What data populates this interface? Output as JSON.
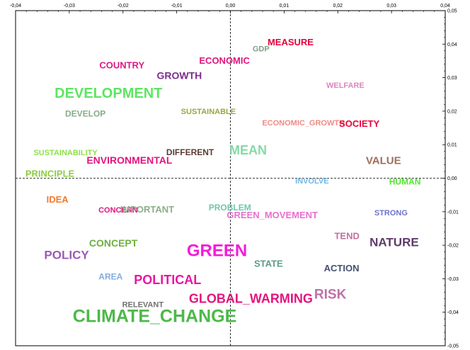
{
  "chart_data": {
    "type": "scatter",
    "title": "",
    "xlabel": "",
    "ylabel": "",
    "xlim": [
      -0.04,
      0.04
    ],
    "ylim": [
      -0.05,
      0.05
    ],
    "x_ticks": [
      "-0,04",
      "-0,03",
      "-0,02",
      "-0,01",
      "0,00",
      "0,01",
      "0,02",
      "0,03",
      "0,04"
    ],
    "y_ticks": [
      "0,05",
      "0,04",
      "0,03",
      "0,02",
      "0,01",
      "0,00",
      "-0,01",
      "-0,02",
      "-0,03",
      "-0,04",
      "-0,05"
    ],
    "grid": false,
    "origin_lines": "dashed",
    "points": [
      {
        "label": "MEASURE",
        "x": 0.0112,
        "y": 0.0404,
        "size": 13,
        "color": "#E8003A"
      },
      {
        "label": "GDP",
        "x": 0.0057,
        "y": 0.0385,
        "size": 11,
        "color": "#7F9F86"
      },
      {
        "label": "ECONOMIC",
        "x": -0.0011,
        "y": 0.0349,
        "size": 13,
        "color": "#E3147E"
      },
      {
        "label": "COUNTRY",
        "x": -0.0202,
        "y": 0.0335,
        "size": 13,
        "color": "#DD1A86"
      },
      {
        "label": "GROWTH",
        "x": -0.0095,
        "y": 0.0304,
        "size": 14,
        "color": "#7E2E8E"
      },
      {
        "label": "WELFARE",
        "x": 0.0214,
        "y": 0.0276,
        "size": 11,
        "color": "#DE86BE"
      },
      {
        "label": "DEVELOPMENT",
        "x": -0.0227,
        "y": 0.0251,
        "size": 20,
        "color": "#5EE561"
      },
      {
        "label": "DEVELOP",
        "x": -0.027,
        "y": 0.0191,
        "size": 12,
        "color": "#86AD86"
      },
      {
        "label": "SUSTAINABLE",
        "x": -0.0041,
        "y": 0.0198,
        "size": 11,
        "color": "#9DA440"
      },
      {
        "label": "ECONOMIC_GROWTH",
        "x": 0.0136,
        "y": 0.0164,
        "size": 11,
        "color": "#F08A86"
      },
      {
        "label": "SOCIETY",
        "x": 0.024,
        "y": 0.0161,
        "size": 13,
        "color": "#E8003A"
      },
      {
        "label": "SUSTAINABILITY",
        "x": -0.0307,
        "y": 0.0075,
        "size": 11,
        "color": "#8DE04A"
      },
      {
        "label": "DIFFERENT",
        "x": -0.0075,
        "y": 0.0075,
        "size": 12,
        "color": "#5A3A32"
      },
      {
        "label": "MEAN",
        "x": 0.0033,
        "y": 0.0081,
        "size": 18,
        "color": "#86D9A6"
      },
      {
        "label": "ENVIRONMENTAL",
        "x": -0.0188,
        "y": 0.0051,
        "size": 14,
        "color": "#E3147E"
      },
      {
        "label": "VALUE",
        "x": 0.0285,
        "y": 0.0051,
        "size": 15,
        "color": "#A06E5A"
      },
      {
        "label": "PRINCIPLE",
        "x": -0.0336,
        "y": 0.0011,
        "size": 13,
        "color": "#8DCC40"
      },
      {
        "label": "INVOLVE",
        "x": 0.0152,
        "y": -0.001,
        "size": 11,
        "color": "#6EB9E8"
      },
      {
        "label": "HUMAN",
        "x": 0.0325,
        "y": -0.0012,
        "size": 12,
        "color": "#4EEA2A"
      },
      {
        "label": "IDEA",
        "x": -0.0322,
        "y": -0.0066,
        "size": 13,
        "color": "#EE7A2E"
      },
      {
        "label": "CONCERN",
        "x": -0.0209,
        "y": -0.0096,
        "size": 11,
        "color": "#E3147E"
      },
      {
        "label": "IMPORTANT",
        "x": -0.0155,
        "y": -0.0095,
        "size": 13,
        "color": "#8AAF8A"
      },
      {
        "label": "PROBLEM",
        "x": -0.0001,
        "y": -0.0089,
        "size": 12,
        "color": "#6EC7AE"
      },
      {
        "label": "GREEN_MOVEMENT",
        "x": 0.0078,
        "y": -0.0112,
        "size": 13,
        "color": "#E870CD"
      },
      {
        "label": "STRONG",
        "x": 0.0299,
        "y": -0.0105,
        "size": 11,
        "color": "#7070CE"
      },
      {
        "label": "TEND",
        "x": 0.0217,
        "y": -0.0175,
        "size": 13,
        "color": "#C4709E"
      },
      {
        "label": "NATURE",
        "x": 0.0305,
        "y": -0.0193,
        "size": 17,
        "color": "#5E3A6A"
      },
      {
        "label": "CONCEPT",
        "x": -0.0218,
        "y": -0.0196,
        "size": 14,
        "color": "#6EB03E"
      },
      {
        "label": "GREEN",
        "x": -0.0025,
        "y": -0.0219,
        "size": 24,
        "color": "#F51AD8"
      },
      {
        "label": "POLICY",
        "x": -0.0305,
        "y": -0.0232,
        "size": 17,
        "color": "#9A5AB4"
      },
      {
        "label": "STATE",
        "x": 0.0071,
        "y": -0.0257,
        "size": 13,
        "color": "#5E9E86"
      },
      {
        "label": "ACTION",
        "x": 0.0207,
        "y": -0.0271,
        "size": 13,
        "color": "#44506E"
      },
      {
        "label": "AREA",
        "x": -0.0223,
        "y": -0.0296,
        "size": 12,
        "color": "#7EAEE0"
      },
      {
        "label": "POLITICAL",
        "x": -0.0117,
        "y": -0.0306,
        "size": 18,
        "color": "#E814A4"
      },
      {
        "label": "RISK",
        "x": 0.0186,
        "y": -0.0349,
        "size": 19,
        "color": "#C070A6"
      },
      {
        "label": "GLOBAL_WARMING",
        "x": 0.0038,
        "y": -0.0362,
        "size": 18,
        "color": "#E3147E"
      },
      {
        "label": "RELEVANT",
        "x": -0.0163,
        "y": -0.0379,
        "size": 11,
        "color": "#707070"
      },
      {
        "label": "CLIMATE_CHANGE",
        "x": -0.0141,
        "y": -0.0415,
        "size": 25,
        "color": "#4EB84A"
      }
    ]
  }
}
